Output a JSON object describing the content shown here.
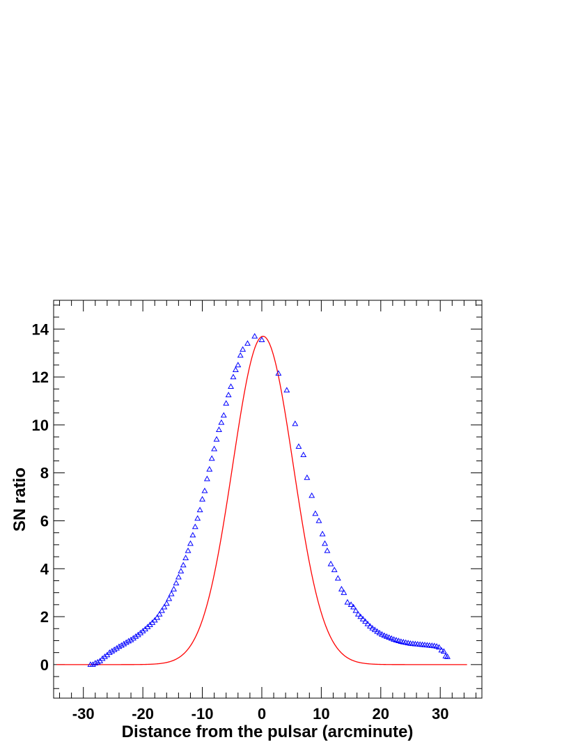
{
  "chart_data": {
    "type": "scatter",
    "xlabel": "Distance from the pulsar (arcminute)",
    "ylabel": "SN ratio",
    "xlim": [
      -35,
      37
    ],
    "ylim": [
      -1.4,
      15.2
    ],
    "x_ticks": [
      -30,
      -20,
      -10,
      0,
      10,
      20,
      30
    ],
    "y_ticks": [
      0,
      2,
      4,
      6,
      8,
      10,
      12,
      14
    ],
    "grid": false,
    "series": [
      {
        "style": "open-triangle-markers",
        "color": "#0000ff",
        "x": [
          -28.8,
          -28.4,
          -28.0,
          -27.6,
          -27.2,
          -26.8,
          -26.4,
          -26.0,
          -25.6,
          -25.2,
          -24.8,
          -24.4,
          -24.0,
          -23.6,
          -23.2,
          -22.8,
          -22.4,
          -22.0,
          -21.6,
          -21.2,
          -20.8,
          -20.4,
          -20.0,
          -19.6,
          -19.2,
          -18.8,
          -18.4,
          -18.0,
          -17.6,
          -17.2,
          -16.8,
          -16.4,
          -16.0,
          -15.6,
          -15.2,
          -14.8,
          -14.4,
          -14.0,
          -13.6,
          -13.2,
          -12.8,
          -12.4,
          -12.0,
          -11.6,
          -11.2,
          -10.8,
          -10.4,
          -10.0,
          -9.6,
          -9.2,
          -8.8,
          -8.4,
          -8.0,
          -7.6,
          -7.2,
          -6.8,
          -6.4,
          -6.0,
          -5.6,
          -5.2,
          -4.8,
          -4.4,
          -4.0,
          -3.6,
          -3.2,
          -2.4,
          -1.2,
          0.0,
          2.8,
          4.2,
          5.6,
          6.2,
          7.0,
          7.6,
          8.4,
          9.0,
          9.6,
          10.2,
          10.6,
          11.0,
          11.6,
          12.2,
          12.8,
          13.4,
          13.8,
          14.4,
          15.0,
          15.4,
          15.8,
          16.2,
          16.6,
          17.0,
          17.4,
          17.8,
          18.2,
          18.6,
          19.0,
          19.4,
          19.8,
          20.2,
          20.6,
          21.0,
          21.4,
          21.8,
          22.2,
          22.6,
          23.0,
          23.4,
          23.8,
          24.2,
          24.6,
          25.0,
          25.4,
          25.8,
          26.2,
          26.6,
          27.0,
          27.4,
          27.8,
          28.2,
          28.6,
          29.0,
          29.4,
          29.8,
          30.2,
          30.6,
          30.9,
          31.2
        ],
        "y": [
          0.0,
          0.0,
          0.06,
          0.1,
          0.15,
          0.25,
          0.33,
          0.4,
          0.5,
          0.56,
          0.62,
          0.68,
          0.75,
          0.8,
          0.86,
          0.92,
          0.98,
          1.03,
          1.1,
          1.17,
          1.24,
          1.32,
          1.4,
          1.48,
          1.57,
          1.66,
          1.75,
          1.85,
          1.96,
          2.1,
          2.25,
          2.4,
          2.55,
          2.75,
          2.95,
          3.15,
          3.4,
          3.65,
          3.9,
          4.15,
          4.45,
          4.75,
          5.05,
          5.4,
          5.75,
          6.1,
          6.45,
          6.9,
          7.25,
          7.75,
          8.15,
          8.6,
          9.0,
          9.4,
          9.8,
          10.1,
          10.4,
          10.9,
          11.25,
          11.6,
          12.0,
          12.3,
          12.5,
          12.9,
          13.15,
          13.4,
          13.7,
          13.55,
          12.15,
          11.45,
          10.05,
          9.1,
          8.75,
          7.8,
          7.05,
          6.3,
          6.0,
          5.45,
          5.05,
          4.75,
          4.2,
          3.95,
          3.6,
          3.15,
          3.0,
          2.6,
          2.5,
          2.4,
          2.25,
          2.1,
          2.0,
          1.9,
          1.8,
          1.7,
          1.6,
          1.52,
          1.45,
          1.38,
          1.32,
          1.26,
          1.21,
          1.17,
          1.13,
          1.09,
          1.05,
          1.02,
          0.99,
          0.96,
          0.94,
          0.92,
          0.9,
          0.88,
          0.87,
          0.86,
          0.85,
          0.84,
          0.83,
          0.82,
          0.81,
          0.8,
          0.79,
          0.78,
          0.76,
          0.72,
          0.6,
          0.55,
          0.35,
          0.33
        ]
      },
      {
        "style": "line",
        "color": "#ff0000",
        "function": "gaussian",
        "amplitude": 13.7,
        "mean": 0.2,
        "sigma": 5.1,
        "xrange": [
          -34.5,
          34.5
        ]
      }
    ]
  }
}
